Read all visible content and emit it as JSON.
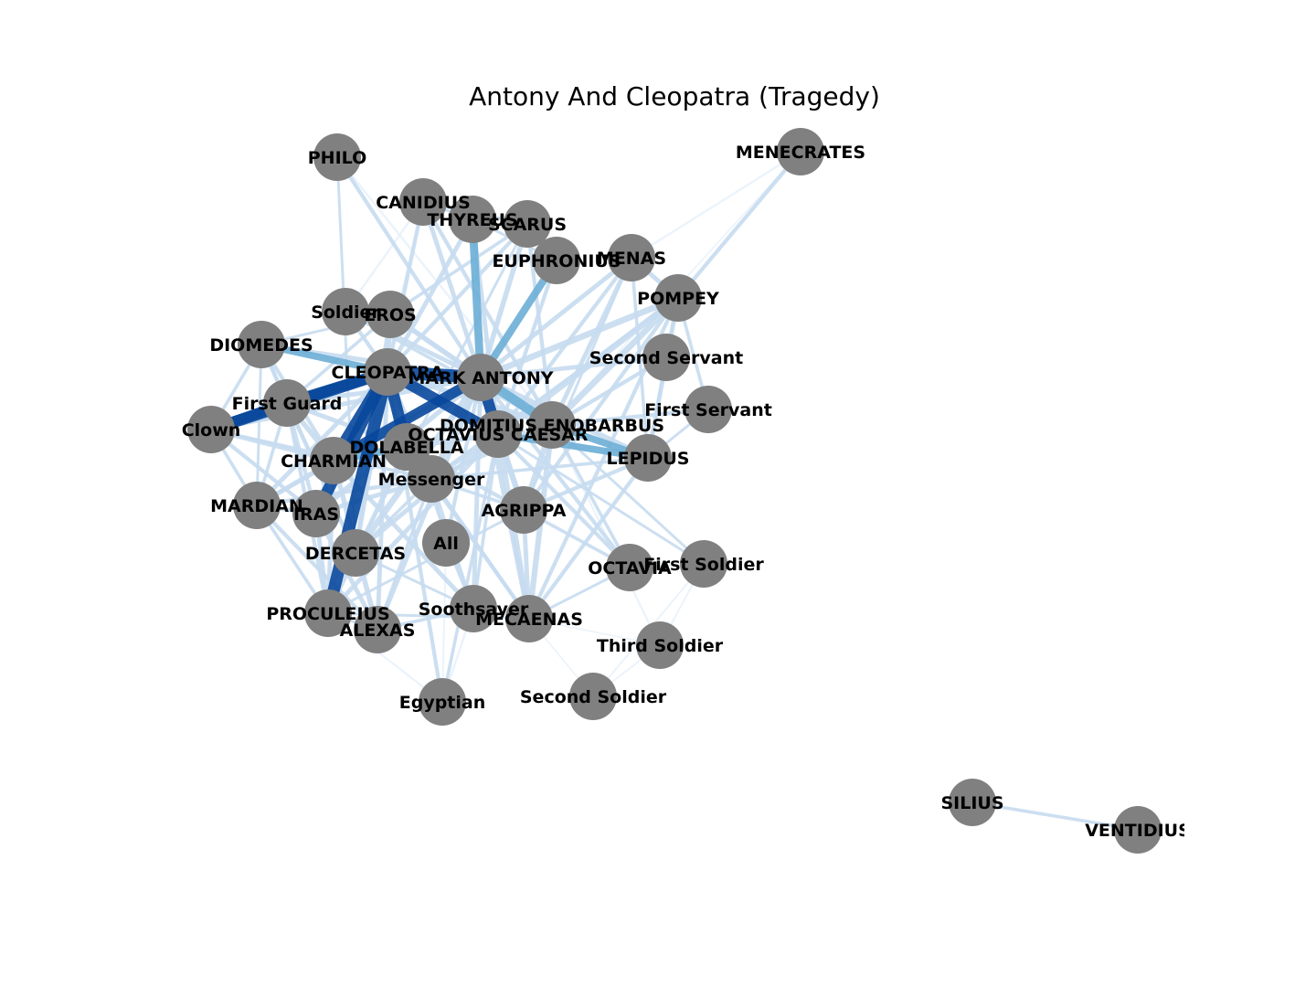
{
  "title": "Antony And Cleopatra (Tragedy)",
  "colors": {
    "node": "#808080",
    "edge_strong": "#08479b",
    "edge_mid": "#6baed6",
    "edge_light": "#c6dbef",
    "edge_faint": "#e3eef9"
  },
  "nodes": [
    {
      "id": "PHILO",
      "label": "PHILO"
    },
    {
      "id": "MENECRATES",
      "label": "MENECRATES"
    },
    {
      "id": "CANIDIUS",
      "label": "CANIDIUS"
    },
    {
      "id": "THYREUS",
      "label": "THYREUS"
    },
    {
      "id": "SCARUS",
      "label": "SCARUS"
    },
    {
      "id": "EUPHRONIUS",
      "label": "EUPHRONIUS"
    },
    {
      "id": "MENAS",
      "label": "MENAS"
    },
    {
      "id": "POMPEY",
      "label": "POMPEY"
    },
    {
      "id": "Soldier",
      "label": "Soldier"
    },
    {
      "id": "EROS",
      "label": "EROS"
    },
    {
      "id": "DIOMEDES",
      "label": "DIOMEDES"
    },
    {
      "id": "Second Servant",
      "label": "Second Servant"
    },
    {
      "id": "CLEOPATRA",
      "label": "CLEOPATRA"
    },
    {
      "id": "MARK ANTONY",
      "label": "MARK ANTONY"
    },
    {
      "id": "First Guard",
      "label": "First Guard"
    },
    {
      "id": "First Servant",
      "label": "First Servant"
    },
    {
      "id": "Clown",
      "label": "Clown"
    },
    {
      "id": "DOMITIUS ENOBARBUS",
      "label": "DOMITIUS ENOBARBUS"
    },
    {
      "id": "OCTAVIUS CAESAR",
      "label": "OCTAVIUS CAESAR"
    },
    {
      "id": "DOLABELLA",
      "label": "DOLABELLA"
    },
    {
      "id": "LEPIDUS",
      "label": "LEPIDUS"
    },
    {
      "id": "CHARMIAN",
      "label": "CHARMIAN"
    },
    {
      "id": "Messenger",
      "label": "Messenger"
    },
    {
      "id": "MARDIAN",
      "label": "MARDIAN"
    },
    {
      "id": "IRAS",
      "label": "IRAS"
    },
    {
      "id": "AGRIPPA",
      "label": "AGRIPPA"
    },
    {
      "id": "All",
      "label": "All"
    },
    {
      "id": "DERCETAS",
      "label": "DERCETAS"
    },
    {
      "id": "OCTAVIA",
      "label": "OCTAVIA"
    },
    {
      "id": "First Soldier",
      "label": "First Soldier"
    },
    {
      "id": "PROCULEIUS",
      "label": "PROCULEIUS"
    },
    {
      "id": "Soothsayer",
      "label": "Soothsayer"
    },
    {
      "id": "MECAENAS",
      "label": "MECAENAS"
    },
    {
      "id": "ALEXAS",
      "label": "ALEXAS"
    },
    {
      "id": "Third Soldier",
      "label": "Third Soldier"
    },
    {
      "id": "Egyptian",
      "label": "Egyptian"
    },
    {
      "id": "Second Soldier",
      "label": "Second Soldier"
    },
    {
      "id": "SILIUS",
      "label": "SILIUS"
    },
    {
      "id": "VENTIDIUS",
      "label": "VENTIDIUS"
    }
  ],
  "edges": [
    {
      "source": "CLEOPATRA",
      "target": "MARK ANTONY",
      "weight": 1.0
    },
    {
      "source": "CLEOPATRA",
      "target": "PROCULEIUS",
      "weight": 0.95
    },
    {
      "source": "CLEOPATRA",
      "target": "CHARMIAN",
      "weight": 0.95
    },
    {
      "source": "CLEOPATRA",
      "target": "DOLABELLA",
      "weight": 0.9
    },
    {
      "source": "CLEOPATRA",
      "target": "IRAS",
      "weight": 0.9
    },
    {
      "source": "CLEOPATRA",
      "target": "Clown",
      "weight": 0.9
    },
    {
      "source": "CLEOPATRA",
      "target": "First Guard",
      "weight": 0.85
    },
    {
      "source": "CLEOPATRA",
      "target": "OCTAVIUS CAESAR",
      "weight": 0.85
    },
    {
      "source": "CHARMIAN",
      "target": "MARK ANTONY",
      "weight": 0.8
    },
    {
      "source": "Clown",
      "target": "First Guard",
      "weight": 0.8
    },
    {
      "source": "MARK ANTONY",
      "target": "OCTAVIUS CAESAR",
      "weight": 0.85
    },
    {
      "source": "MARK ANTONY",
      "target": "DOMITIUS ENOBARBUS",
      "weight": 0.7
    },
    {
      "source": "MARK ANTONY",
      "target": "THYREUS",
      "weight": 0.6
    },
    {
      "source": "MARK ANTONY",
      "target": "EUPHRONIUS",
      "weight": 0.55
    },
    {
      "source": "DIOMEDES",
      "target": "CLEOPATRA",
      "weight": 0.5
    },
    {
      "source": "CHARMIAN",
      "target": "DOLABELLA",
      "weight": 0.55
    },
    {
      "source": "OCTAVIUS CAESAR",
      "target": "LEPIDUS",
      "weight": 0.5
    },
    {
      "source": "DOMITIUS ENOBARBUS",
      "target": "LEPIDUS",
      "weight": 0.5
    },
    {
      "source": "MARK ANTONY",
      "target": "POMPEY",
      "weight": 0.45
    },
    {
      "source": "OCTAVIUS CAESAR",
      "target": "POMPEY",
      "weight": 0.45
    },
    {
      "source": "DOMITIUS ENOBARBUS",
      "target": "POMPEY",
      "weight": 0.45
    },
    {
      "source": "MARK ANTONY",
      "target": "DERCETAS",
      "weight": 0.45
    },
    {
      "source": "MARK ANTONY",
      "target": "Messenger",
      "weight": 0.45
    },
    {
      "source": "OCTAVIUS CAESAR",
      "target": "MECAENAS",
      "weight": 0.4
    },
    {
      "source": "OCTAVIUS CAESAR",
      "target": "AGRIPPA",
      "weight": 0.4
    },
    {
      "source": "DOMITIUS ENOBARBUS",
      "target": "MECAENAS",
      "weight": 0.4
    },
    {
      "source": "DOMITIUS ENOBARBUS",
      "target": "AGRIPPA",
      "weight": 0.4
    },
    {
      "source": "MARK ANTONY",
      "target": "LEPIDUS",
      "weight": 0.4
    },
    {
      "source": "MARK ANTONY",
      "target": "MECAENAS",
      "weight": 0.35
    },
    {
      "source": "MARK ANTONY",
      "target": "AGRIPPA",
      "weight": 0.35
    },
    {
      "source": "MARK ANTONY",
      "target": "EROS",
      "weight": 0.35
    },
    {
      "source": "MARK ANTONY",
      "target": "SCARUS",
      "weight": 0.35
    },
    {
      "source": "MARK ANTONY",
      "target": "CANIDIUS",
      "weight": 0.3
    },
    {
      "source": "MARK ANTONY",
      "target": "First Guard",
      "weight": 0.3
    },
    {
      "source": "MARK ANTONY",
      "target": "MENAS",
      "weight": 0.3
    },
    {
      "source": "MARK ANTONY",
      "target": "Second Servant",
      "weight": 0.3
    },
    {
      "source": "MARK ANTONY",
      "target": "Soldier",
      "weight": 0.3
    },
    {
      "source": "MARK ANTONY",
      "target": "IRAS",
      "weight": 0.35
    },
    {
      "source": "MARK ANTONY",
      "target": "MARDIAN",
      "weight": 0.3
    },
    {
      "source": "MARK ANTONY",
      "target": "ALEXAS",
      "weight": 0.3
    },
    {
      "source": "MARK ANTONY",
      "target": "Soothsayer",
      "weight": 0.3
    },
    {
      "source": "MARK ANTONY",
      "target": "PHILO",
      "weight": 0.25
    },
    {
      "source": "MARK ANTONY",
      "target": "All",
      "weight": 0.25
    },
    {
      "source": "MARK ANTONY",
      "target": "Clown",
      "weight": 0.3
    },
    {
      "source": "MARK ANTONY",
      "target": "DIOMEDES",
      "weight": 0.3
    },
    {
      "source": "MARK ANTONY",
      "target": "OCTAVIA",
      "weight": 0.25
    },
    {
      "source": "CLEOPATRA",
      "target": "DOMITIUS ENOBARBUS",
      "weight": 0.35
    },
    {
      "source": "CLEOPATRA",
      "target": "Messenger",
      "weight": 0.35
    },
    {
      "source": "CLEOPATRA",
      "target": "MARDIAN",
      "weight": 0.3
    },
    {
      "source": "CLEOPATRA",
      "target": "ALEXAS",
      "weight": 0.3
    },
    {
      "source": "CLEOPATRA",
      "target": "EROS",
      "weight": 0.3
    },
    {
      "source": "CLEOPATRA",
      "target": "DERCETAS",
      "weight": 0.3
    },
    {
      "source": "CLEOPATRA",
      "target": "Soldier",
      "weight": 0.25
    },
    {
      "source": "CLEOPATRA",
      "target": "THYREUS",
      "weight": 0.3
    },
    {
      "source": "CLEOPATRA",
      "target": "CANIDIUS",
      "weight": 0.25
    },
    {
      "source": "CLEOPATRA",
      "target": "SCARUS",
      "weight": 0.25
    },
    {
      "source": "CLEOPATRA",
      "target": "Egyptian",
      "weight": 0.25
    },
    {
      "source": "CLEOPATRA",
      "target": "Soothsayer",
      "weight": 0.25
    },
    {
      "source": "CHARMIAN",
      "target": "IRAS",
      "weight": 0.4
    },
    {
      "source": "CHARMIAN",
      "target": "ALEXAS",
      "weight": 0.35
    },
    {
      "source": "CHARMIAN",
      "target": "MARDIAN",
      "weight": 0.3
    },
    {
      "source": "CHARMIAN",
      "target": "Soothsayer",
      "weight": 0.3
    },
    {
      "source": "CHARMIAN",
      "target": "Clown",
      "weight": 0.3
    },
    {
      "source": "CHARMIAN",
      "target": "First Guard",
      "weight": 0.35
    },
    {
      "source": "CHARMIAN",
      "target": "PROCULEIUS",
      "weight": 0.3
    },
    {
      "source": "CHARMIAN",
      "target": "DIOMEDES",
      "weight": 0.25
    },
    {
      "source": "IRAS",
      "target": "Clown",
      "weight": 0.25
    },
    {
      "source": "IRAS",
      "target": "MARDIAN",
      "weight": 0.3
    },
    {
      "source": "IRAS",
      "target": "ALEXAS",
      "weight": 0.3
    },
    {
      "source": "IRAS",
      "target": "PROCULEIUS",
      "weight": 0.3
    },
    {
      "source": "IRAS",
      "target": "Messenger",
      "weight": 0.3
    },
    {
      "source": "DOLABELLA",
      "target": "OCTAVIUS CAESAR",
      "weight": 0.35
    },
    {
      "source": "DOLABELLA",
      "target": "PROCULEIUS",
      "weight": 0.3
    },
    {
      "source": "DOLABELLA",
      "target": "First Guard",
      "weight": 0.3
    },
    {
      "source": "DOLABELLA",
      "target": "MECAENAS",
      "weight": 0.25
    },
    {
      "source": "DOLABELLA",
      "target": "AGRIPPA",
      "weight": 0.25
    },
    {
      "source": "OCTAVIUS CAESAR",
      "target": "PROCULEIUS",
      "weight": 0.3
    },
    {
      "source": "OCTAVIUS CAESAR",
      "target": "DERCETAS",
      "weight": 0.3
    },
    {
      "source": "OCTAVIUS CAESAR",
      "target": "Messenger",
      "weight": 0.3
    },
    {
      "source": "OCTAVIUS CAESAR",
      "target": "OCTAVIA",
      "weight": 0.25
    },
    {
      "source": "OCTAVIUS CAESAR",
      "target": "THYREUS",
      "weight": 0.3
    },
    {
      "source": "OCTAVIUS CAESAR",
      "target": "EUPHRONIUS",
      "weight": 0.25
    },
    {
      "source": "OCTAVIUS CAESAR",
      "target": "MENAS",
      "weight": 0.25
    },
    {
      "source": "OCTAVIUS CAESAR",
      "target": "Egyptian",
      "weight": 0.2
    },
    {
      "source": "OCTAVIUS CAESAR",
      "target": "Soothsayer",
      "weight": 0.2
    },
    {
      "source": "OCTAVIUS CAESAR",
      "target": "First Soldier",
      "weight": 0.15
    },
    {
      "source": "DOMITIUS ENOBARBUS",
      "target": "MENAS",
      "weight": 0.3
    },
    {
      "source": "DOMITIUS ENOBARBUS",
      "target": "Second Servant",
      "weight": 0.25
    },
    {
      "source": "DOMITIUS ENOBARBUS",
      "target": "First Servant",
      "weight": 0.25
    },
    {
      "source": "DOMITIUS ENOBARBUS",
      "target": "CANIDIUS",
      "weight": 0.25
    },
    {
      "source": "DOMITIUS ENOBARBUS",
      "target": "SCARUS",
      "weight": 0.25
    },
    {
      "source": "DOMITIUS ENOBARBUS",
      "target": "EROS",
      "weight": 0.25
    },
    {
      "source": "DOMITIUS ENOBARBUS",
      "target": "OCTAVIA",
      "weight": 0.2
    },
    {
      "source": "DOMITIUS ENOBARBUS",
      "target": "Soldier",
      "weight": 0.2
    },
    {
      "source": "DOMITIUS ENOBARBUS",
      "target": "Messenger",
      "weight": 0.25
    },
    {
      "source": "DOMITIUS ENOBARBUS",
      "target": "First Soldier",
      "weight": 0.15
    },
    {
      "source": "DOMITIUS ENOBARBUS",
      "target": "Third Soldier",
      "weight": 0.1
    },
    {
      "source": "POMPEY",
      "target": "MENAS",
      "weight": 0.3
    },
    {
      "source": "POMPEY",
      "target": "MENECRATES",
      "weight": 0.25
    },
    {
      "source": "POMPEY",
      "target": "LEPIDUS",
      "weight": 0.3
    },
    {
      "source": "POMPEY",
      "target": "AGRIPPA",
      "weight": 0.25
    },
    {
      "source": "POMPEY",
      "target": "MECAENAS",
      "weight": 0.25
    },
    {
      "source": "POMPEY",
      "target": "Second Servant",
      "weight": 0.2
    },
    {
      "source": "POMPEY",
      "target": "First Servant",
      "weight": 0.2
    },
    {
      "source": "POMPEY",
      "target": "Messenger",
      "weight": 0.2
    },
    {
      "source": "MENAS",
      "target": "MENECRATES",
      "weight": 0.1
    },
    {
      "source": "MENAS",
      "target": "LEPIDUS",
      "weight": 0.2
    },
    {
      "source": "MENAS",
      "target": "AGRIPPA",
      "weight": 0.15
    },
    {
      "source": "LEPIDUS",
      "target": "AGRIPPA",
      "weight": 0.25
    },
    {
      "source": "LEPIDUS",
      "target": "MECAENAS",
      "weight": 0.25
    },
    {
      "source": "LEPIDUS",
      "target": "Messenger",
      "weight": 0.2
    },
    {
      "source": "LEPIDUS",
      "target": "Second Servant",
      "weight": 0.15
    },
    {
      "source": "LEPIDUS",
      "target": "First Servant",
      "weight": 0.15
    },
    {
      "source": "AGRIPPA",
      "target": "MECAENAS",
      "weight": 0.3
    },
    {
      "source": "AGRIPPA",
      "target": "OCTAVIA",
      "weight": 0.2
    },
    {
      "source": "AGRIPPA",
      "target": "PROCULEIUS",
      "weight": 0.15
    },
    {
      "source": "MECAENAS",
      "target": "OCTAVIA",
      "weight": 0.15
    },
    {
      "source": "MECAENAS",
      "target": "PROCULEIUS",
      "weight": 0.15
    },
    {
      "source": "EROS",
      "target": "Soldier",
      "weight": 0.2
    },
    {
      "source": "EROS",
      "target": "DERCETAS",
      "weight": 0.25
    },
    {
      "source": "EROS",
      "target": "First Guard",
      "weight": 0.2
    },
    {
      "source": "EROS",
      "target": "DIOMEDES",
      "weight": 0.15
    },
    {
      "source": "SCARUS",
      "target": "CANIDIUS",
      "weight": 0.15
    },
    {
      "source": "SCARUS",
      "target": "EROS",
      "weight": 0.2
    },
    {
      "source": "SCARUS",
      "target": "DERCETAS",
      "weight": 0.15
    },
    {
      "source": "THYREUS",
      "target": "CANIDIUS",
      "weight": 0.15
    },
    {
      "source": "THYREUS",
      "target": "EUPHRONIUS",
      "weight": 0.15
    },
    {
      "source": "DERCETAS",
      "target": "First Guard",
      "weight": 0.25
    },
    {
      "source": "DERCETAS",
      "target": "DIOMEDES",
      "weight": 0.2
    },
    {
      "source": "DERCETAS",
      "target": "Soothsayer",
      "weight": 0.15
    },
    {
      "source": "DIOMEDES",
      "target": "First Guard",
      "weight": 0.25
    },
    {
      "source": "DIOMEDES",
      "target": "Clown",
      "weight": 0.2
    },
    {
      "source": "DIOMEDES",
      "target": "MARDIAN",
      "weight": 0.15
    },
    {
      "source": "First Guard",
      "target": "PROCULEIUS",
      "weight": 0.25
    },
    {
      "source": "First Guard",
      "target": "IRAS",
      "weight": 0.25
    },
    {
      "source": "First Guard",
      "target": "MARDIAN",
      "weight": 0.2
    },
    {
      "source": "Clown",
      "target": "MARDIAN",
      "weight": 0.2
    },
    {
      "source": "Clown",
      "target": "Messenger",
      "weight": 0.2
    },
    {
      "source": "MARDIAN",
      "target": "ALEXAS",
      "weight": 0.25
    },
    {
      "source": "MARDIAN",
      "target": "PROCULEIUS",
      "weight": 0.2
    },
    {
      "source": "MARDIAN",
      "target": "Messenger",
      "weight": 0.25
    },
    {
      "source": "ALEXAS",
      "target": "Soothsayer",
      "weight": 0.2
    },
    {
      "source": "ALEXAS",
      "target": "Messenger",
      "weight": 0.2
    },
    {
      "source": "ALEXAS",
      "target": "PROCULEIUS",
      "weight": 0.15
    },
    {
      "source": "Soothsayer",
      "target": "All",
      "weight": 0.15
    },
    {
      "source": "Soothsayer",
      "target": "Egyptian",
      "weight": 0.12
    },
    {
      "source": "Soothsayer",
      "target": "Messenger",
      "weight": 0.15
    },
    {
      "source": "Messenger",
      "target": "All",
      "weight": 0.15
    },
    {
      "source": "Messenger",
      "target": "AGRIPPA",
      "weight": 0.2
    },
    {
      "source": "Messenger",
      "target": "MECAENAS",
      "weight": 0.2
    },
    {
      "source": "Messenger",
      "target": "DERCETAS",
      "weight": 0.2
    },
    {
      "source": "Egyptian",
      "target": "PROCULEIUS",
      "weight": 0.1
    },
    {
      "source": "Egyptian",
      "target": "All",
      "weight": 0.08
    },
    {
      "source": "PHILO",
      "target": "DERCETAS",
      "weight": 0.15
    },
    {
      "source": "PHILO",
      "target": "DOMITIUS ENOBARBUS",
      "weight": 0.12
    },
    {
      "source": "CANIDIUS",
      "target": "PROCULEIUS",
      "weight": 0.12
    },
    {
      "source": "CANIDIUS",
      "target": "Soldier",
      "weight": 0.12
    },
    {
      "source": "OCTAVIA",
      "target": "First Soldier",
      "weight": 0.08
    },
    {
      "source": "First Soldier",
      "target": "Third Soldier",
      "weight": 0.08
    },
    {
      "source": "First Soldier",
      "target": "Second Soldier",
      "weight": 0.08
    },
    {
      "source": "Third Soldier",
      "target": "Second Soldier",
      "weight": 0.08
    },
    {
      "source": "Second Soldier",
      "target": "MECAENAS",
      "weight": 0.05
    },
    {
      "source": "Third Soldier",
      "target": "MECAENAS",
      "weight": 0.05
    },
    {
      "source": "MENECRATES",
      "target": "DOMITIUS ENOBARBUS",
      "weight": 0.05
    },
    {
      "source": "SILIUS",
      "target": "VENTIDIUS",
      "weight": 0.2
    }
  ]
}
